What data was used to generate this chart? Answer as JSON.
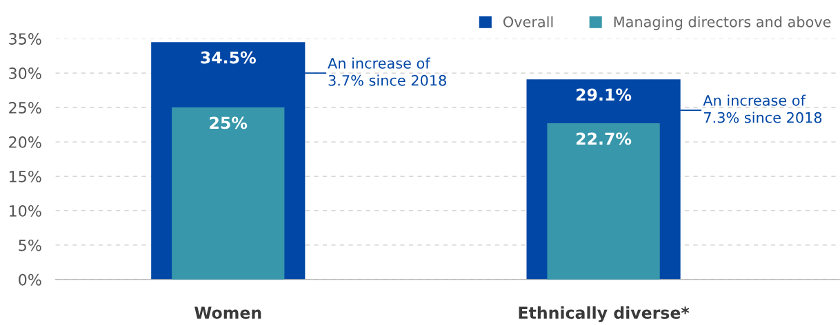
{
  "chart_data": {
    "type": "bar",
    "categories": [
      "Women",
      "Ethnically diverse*"
    ],
    "series": [
      {
        "name": "Overall",
        "color": "#0047a6",
        "values": [
          34.5,
          29.1
        ],
        "value_labels": [
          "34.5%",
          "29.1%"
        ]
      },
      {
        "name": "Managing directors and above",
        "color": "#3897aa",
        "values": [
          25,
          22.7
        ],
        "value_labels": [
          "25%",
          "22.7%"
        ]
      }
    ],
    "ylim": [
      0,
      35
    ],
    "yticks": [
      {
        "value": 0,
        "label": "0%"
      },
      {
        "value": 5,
        "label": "5%"
      },
      {
        "value": 10,
        "label": "10%"
      },
      {
        "value": 15,
        "label": "15%"
      },
      {
        "value": 20,
        "label": "20%"
      },
      {
        "value": 25,
        "label": "25%"
      },
      {
        "value": 30,
        "label": "30%"
      },
      {
        "value": 35,
        "label": "35%"
      }
    ],
    "grid": "y",
    "legend": "top right",
    "annotations": [
      "An increase of\n3.7% since 2018",
      "An increase of\n7.3% since 2018"
    ]
  }
}
